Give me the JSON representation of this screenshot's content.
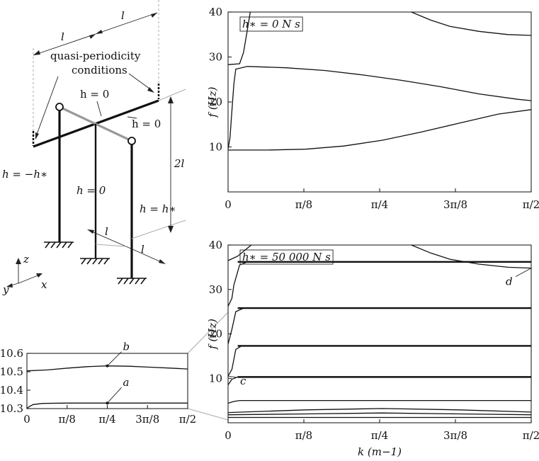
{
  "diagram": {
    "labels": {
      "l_top_left": "l",
      "l_top_right": "l",
      "quasi_line1": "quasi-periodicity",
      "quasi_line2": "conditions",
      "h_top": "h = 0",
      "h_mid": "h = 0",
      "h_left": "h = −h∗",
      "h_center": "h = 0",
      "h_right": "h = h∗",
      "height_2l": "2l",
      "l_bottom_left": "l",
      "l_bottom_right": "l",
      "axis_z": "z",
      "axis_y": "y",
      "axis_x": "x"
    }
  },
  "chart_data": [
    {
      "id": "top",
      "type": "line",
      "annotation": "h∗ = 0 N s",
      "ylabel": "f (Hz)",
      "xlabel": "",
      "xlim": [
        0,
        1.5708
      ],
      "ylim": [
        0,
        40
      ],
      "x_ticks": [
        "0",
        "π/8",
        "π/4",
        "3π/8",
        "π/2"
      ],
      "y_ticks": [
        "10",
        "20",
        "30",
        "40"
      ],
      "series": [
        {
          "points": [
            [
              0,
              9.3
            ],
            [
              0.2,
              9.3
            ],
            [
              0.4,
              9.5
            ],
            [
              0.6,
              10.2
            ],
            [
              0.8,
              11.5
            ],
            [
              1.0,
              13.3
            ],
            [
              1.2,
              15.3
            ],
            [
              1.4,
              17.3
            ],
            [
              1.5708,
              18.3
            ]
          ]
        },
        {
          "points": [
            [
              0,
              9.6
            ],
            [
              0.01,
              12
            ],
            [
              0.02,
              18
            ],
            [
              0.03,
              24
            ],
            [
              0.04,
              27.3
            ],
            [
              0.1,
              27.9
            ],
            [
              0.3,
              27.6
            ],
            [
              0.5,
              27.0
            ],
            [
              0.7,
              26.0
            ],
            [
              0.9,
              24.8
            ],
            [
              1.1,
              23.4
            ],
            [
              1.3,
              21.8
            ],
            [
              1.5,
              20.6
            ],
            [
              1.5708,
              20.3
            ]
          ]
        },
        {
          "points": [
            [
              0,
              28.3
            ],
            [
              0.06,
              28.5
            ],
            [
              0.08,
              31
            ],
            [
              0.1,
              36
            ],
            [
              0.115,
              40
            ]
          ]
        },
        {
          "points": [
            [
              0.95,
              40
            ],
            [
              1.05,
              38.2
            ],
            [
              1.15,
              36.8
            ],
            [
              1.3,
              35.7
            ],
            [
              1.45,
              35.0
            ],
            [
              1.5708,
              34.8
            ]
          ]
        }
      ]
    },
    {
      "id": "bottom",
      "type": "line",
      "annotation": "h∗ = 50 000 N s",
      "ylabel": "f (Hz)",
      "xlabel": "k (m−1)",
      "xlim": [
        0,
        1.5708
      ],
      "ylim": [
        0,
        40
      ],
      "x_ticks": [
        "0",
        "π/8",
        "π/4",
        "3π/8",
        "π/2"
      ],
      "y_ticks": [
        "10",
        "20",
        "30",
        "40"
      ],
      "flat_levels": [
        10.3,
        17.3,
        25.8,
        36.2
      ],
      "series": [
        {
          "points": [
            [
              0,
              1.2
            ],
            [
              1.5708,
              1.2
            ]
          ]
        },
        {
          "points": [
            [
              0,
              1.8
            ],
            [
              0.4,
              2.0
            ],
            [
              0.8,
              2.2
            ],
            [
              1.2,
              2.0
            ],
            [
              1.5708,
              1.8
            ]
          ]
        },
        {
          "points": [
            [
              0,
              2.3
            ],
            [
              0.4,
              2.9
            ],
            [
              0.8,
              3.2
            ],
            [
              1.2,
              2.9
            ],
            [
              1.5708,
              2.4
            ]
          ]
        },
        {
          "points": [
            [
              0,
              4.4
            ],
            [
              0.03,
              4.8
            ],
            [
              0.06,
              5.0
            ],
            [
              1.5708,
              5.0
            ]
          ]
        },
        {
          "points": [
            [
              0,
              8.5
            ],
            [
              0.02,
              9.8
            ],
            [
              0.05,
              10.3
            ],
            [
              1.5708,
              10.3
            ]
          ]
        },
        {
          "points": [
            [
              0,
              10.5
            ],
            [
              0.02,
              12
            ],
            [
              0.04,
              16.5
            ],
            [
              0.07,
              17.3
            ],
            [
              1.5708,
              17.3
            ]
          ]
        },
        {
          "points": [
            [
              0,
              17.7
            ],
            [
              0.02,
              21
            ],
            [
              0.04,
              25
            ],
            [
              0.08,
              25.8
            ],
            [
              1.5708,
              25.8
            ]
          ]
        },
        {
          "points": [
            [
              0,
              26.2
            ],
            [
              0.02,
              28
            ],
            [
              0.03,
              31
            ],
            [
              0.06,
              35.5
            ],
            [
              0.1,
              36.2
            ],
            [
              1.5708,
              36.2
            ]
          ]
        },
        {
          "points": [
            [
              0,
              36.5
            ],
            [
              0.05,
              37.5
            ],
            [
              0.12,
              40
            ]
          ]
        },
        {
          "points": [
            [
              0.95,
              40
            ],
            [
              1.05,
              38.2
            ],
            [
              1.15,
              36.8
            ],
            [
              1.3,
              35.7
            ],
            [
              1.45,
              35.0
            ],
            [
              1.5708,
              34.8
            ]
          ]
        }
      ],
      "markers": [
        {
          "label": "c",
          "x": 0.0,
          "y": 10.5
        },
        {
          "label": "d",
          "x": 1.5708,
          "y": 34.8
        }
      ]
    },
    {
      "id": "inset",
      "type": "line",
      "xlim": [
        0,
        1.5708
      ],
      "ylim": [
        10.3,
        10.6
      ],
      "x_ticks": [
        "0",
        "π/8",
        "π/4",
        "3π/8",
        "π/2"
      ],
      "y_ticks": [
        "10.3",
        "10.4",
        "10.5",
        "10.6"
      ],
      "series": [
        {
          "points": [
            [
              0,
              10.3
            ],
            [
              0.02,
              10.31
            ],
            [
              0.06,
              10.322
            ],
            [
              0.15,
              10.328
            ],
            [
              0.4,
              10.33
            ],
            [
              0.7854,
              10.33
            ],
            [
              1.2,
              10.33
            ],
            [
              1.5708,
              10.33
            ]
          ]
        },
        {
          "points": [
            [
              0,
              10.505
            ],
            [
              0.2,
              10.51
            ],
            [
              0.4,
              10.52
            ],
            [
              0.6,
              10.528
            ],
            [
              0.7854,
              10.532
            ],
            [
              1.0,
              10.53
            ],
            [
              1.2,
              10.525
            ],
            [
              1.4,
              10.52
            ],
            [
              1.5708,
              10.515
            ]
          ]
        }
      ],
      "markers": [
        {
          "label": "a",
          "x": 0.7854,
          "y": 10.33
        },
        {
          "label": "b",
          "x": 0.7854,
          "y": 10.532
        }
      ]
    }
  ]
}
